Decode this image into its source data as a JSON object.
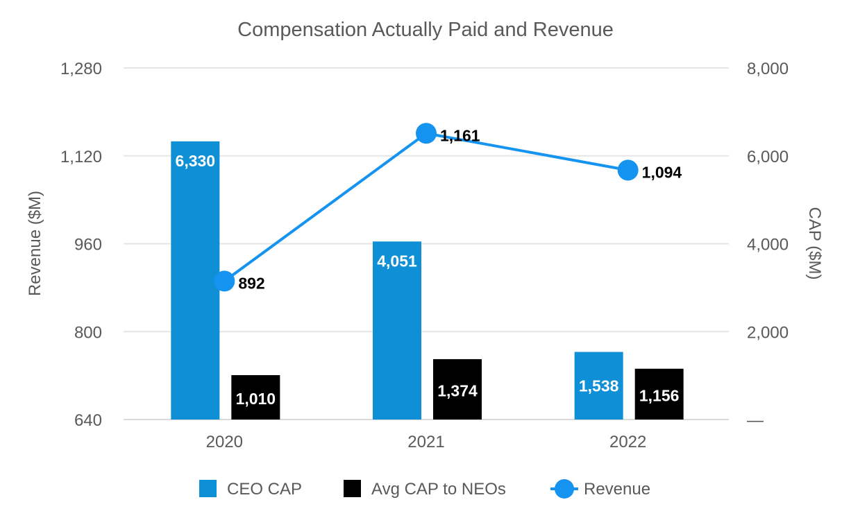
{
  "chart_data": {
    "type": "bar",
    "title": "Compensation Actually Paid and Revenue",
    "categories": [
      "2020",
      "2021",
      "2022"
    ],
    "series": [
      {
        "name": "CEO CAP",
        "type": "bar",
        "axis": "right",
        "color": "#0f8fd6",
        "label_color": "#ffffff",
        "values": [
          6330,
          4051,
          1538
        ],
        "labels": [
          "6,330",
          "4,051",
          "1,538"
        ]
      },
      {
        "name": "Avg CAP to NEOs",
        "type": "bar",
        "axis": "right",
        "color": "#000000",
        "label_color": "#ffffff",
        "values": [
          1010,
          1374,
          1156
        ],
        "labels": [
          "1,010",
          "1,374",
          "1,156"
        ]
      },
      {
        "name": "Revenue",
        "type": "line",
        "axis": "left",
        "color": "#1493f0",
        "label_color": "#000000",
        "values": [
          892,
          1161,
          1094
        ],
        "labels": [
          "892",
          "1,161",
          "1,094"
        ]
      }
    ],
    "left_axis": {
      "title": "Revenue ($M)",
      "min": 640,
      "max": 1280,
      "ticks": [
        640,
        800,
        960,
        1120,
        1280
      ],
      "tick_labels": [
        "640",
        "800",
        "960",
        "1,120",
        "1,280"
      ]
    },
    "right_axis": {
      "title": "CAP ($M)",
      "min": 0,
      "max": 8000,
      "ticks": [
        0,
        2000,
        4000,
        6000,
        8000
      ],
      "tick_labels": [
        "—",
        "2,000",
        "4,000",
        "6,000",
        "8,000"
      ]
    },
    "grid": true,
    "legend": "bottom"
  }
}
